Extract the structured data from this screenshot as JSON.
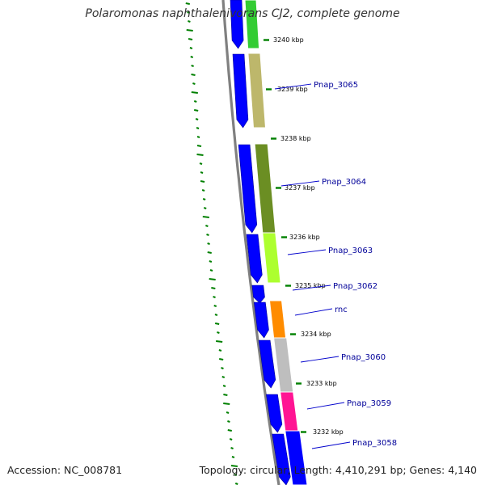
{
  "title": "Polaromonas naphthalenivorans CJ2, complete genome",
  "footer": {
    "accession": "Accession: NC_008781",
    "summary": "Topology: circular; Length: 4,410,291 bp; Genes: 4,140"
  },
  "ticks": [
    "3240 kbp",
    "3239 kbp",
    "3238 kbp",
    "3237 kbp",
    "3236 kbp",
    "3235 kbp",
    "3234 kbp",
    "3233 kbp",
    "3232 kbp"
  ],
  "genes": [
    {
      "label": "",
      "color": "#33cc33"
    },
    {
      "label": "Pnap_3065",
      "color": "#bdb76b"
    },
    {
      "label": "Pnap_3064",
      "color": "#6b8e23"
    },
    {
      "label": "Pnap_3063",
      "color": "#adff2f"
    },
    {
      "label": "Pnap_3062",
      "color": ""
    },
    {
      "label": "rnc",
      "color": "#ff8c00"
    },
    {
      "label": "Pnap_3060",
      "color": "#bebebe"
    },
    {
      "label": "Pnap_3059",
      "color": "#ff1493"
    },
    {
      "label": "Pnap_3058",
      "color": "#0000ff"
    }
  ],
  "colors": {
    "cds": "#0000ff",
    "backbone": "#808080",
    "gc_skew": "#008000",
    "label": "#000099",
    "tick_text": "#000000",
    "tick_mark": "#008000"
  }
}
